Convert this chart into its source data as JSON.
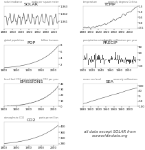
{
  "title_fontsize": 4.5,
  "tick_fontsize": 2.8,
  "background": "#ffffff",
  "charts": [
    {
      "id": "SOLAR",
      "title": "SOLAR",
      "left_label": "solar irradiance",
      "right_label": "watts per square meter",
      "ylim": [
        1360.0,
        1363.0
      ],
      "yticks": [
        1361,
        1362,
        1363
      ],
      "ytick_labels": [
        "1,361",
        "1,362",
        "1,363"
      ],
      "xstart": 1880,
      "xend": 2010,
      "xticks": [
        1880,
        1900,
        1920,
        1940,
        1960,
        1980,
        2000
      ],
      "style": "oscillating"
    },
    {
      "id": "TEMP",
      "title": "TEMP",
      "left_label": "temperature",
      "right_label": "anomaly degrees Celsius",
      "ylim": [
        -0.6,
        1.5
      ],
      "yticks": [
        -0.5,
        0.0,
        0.5,
        1.0,
        1.5
      ],
      "ytick_labels": [
        "-0.5",
        "0.0",
        "0.5",
        "1.0",
        "1.5"
      ],
      "xstart": 1880,
      "xend": 2020,
      "xticks": [
        1880,
        1900,
        1920,
        1940,
        1960,
        1980,
        2000
      ],
      "style": "rising_noisy"
    },
    {
      "id": "POP",
      "title": "POP",
      "left_label": "global population",
      "right_label": "billion humans",
      "ylim": [
        1,
        8
      ],
      "yticks": [
        2,
        4,
        6,
        8
      ],
      "ytick_labels": [
        "2",
        "4",
        "6",
        "8"
      ],
      "xstart": 1800,
      "xend": 2020,
      "xticks": [
        1800,
        1850,
        1900,
        1950,
        2000
      ],
      "style": "exponential"
    },
    {
      "id": "PRECIP",
      "title": "PRECIP",
      "left_label": "precipitation rate (land)",
      "right_label": "anomaly millimeters per year",
      "ylim": [
        -50,
        90
      ],
      "yticks": [
        -40,
        0,
        40,
        80
      ],
      "ytick_labels": [
        "-40",
        "0",
        "40",
        "80"
      ],
      "xstart": 1900,
      "xend": 2020,
      "xticks": [
        1900,
        1920,
        1940,
        1960,
        1980,
        2000
      ],
      "style": "bar_noisy"
    },
    {
      "id": "EMISSIONS",
      "title": "EMISSIONS",
      "left_label": "fossil fuel CO2 emissions",
      "right_label": "gigatons CO2 per year",
      "ylim": [
        0,
        40
      ],
      "yticks": [
        0,
        10,
        20,
        30,
        40
      ],
      "ytick_labels": [
        "0",
        "10",
        "20",
        "30",
        "40"
      ],
      "xstart": 1800,
      "xend": 2020,
      "xticks": [
        1800,
        1850,
        1900,
        1950,
        2000
      ],
      "style": "exponential2"
    },
    {
      "id": "SEA",
      "title": "SEA",
      "left_label": "mean sea level",
      "right_label": "anomaly millimeters",
      "ylim": [
        -100,
        120
      ],
      "yticks": [
        -100,
        -50,
        0,
        50,
        100
      ],
      "ytick_labels": [
        "-100",
        "-50",
        "0",
        "50",
        "100"
      ],
      "xstart": 1880,
      "xend": 2020,
      "xticks": [
        1880,
        1900,
        1920,
        1940,
        1960,
        1980,
        2000
      ],
      "style": "rising_smooth"
    },
    {
      "id": "CO2",
      "title": "CO2",
      "left_label": "atmospheric CO2",
      "right_label": "parts per million",
      "ylim": [
        270,
        430
      ],
      "yticks": [
        280,
        320,
        360,
        400
      ],
      "ytick_labels": [
        "280",
        "320",
        "360",
        "400"
      ],
      "xstart": 1800,
      "xend": 2020,
      "xticks": [
        1800,
        1850,
        1900,
        1950,
        2000
      ],
      "style": "exponential3"
    }
  ],
  "footnote": "all data except SOLAR from\nourworldindata.org",
  "line_color": "#444444",
  "bar_color": "#444444"
}
